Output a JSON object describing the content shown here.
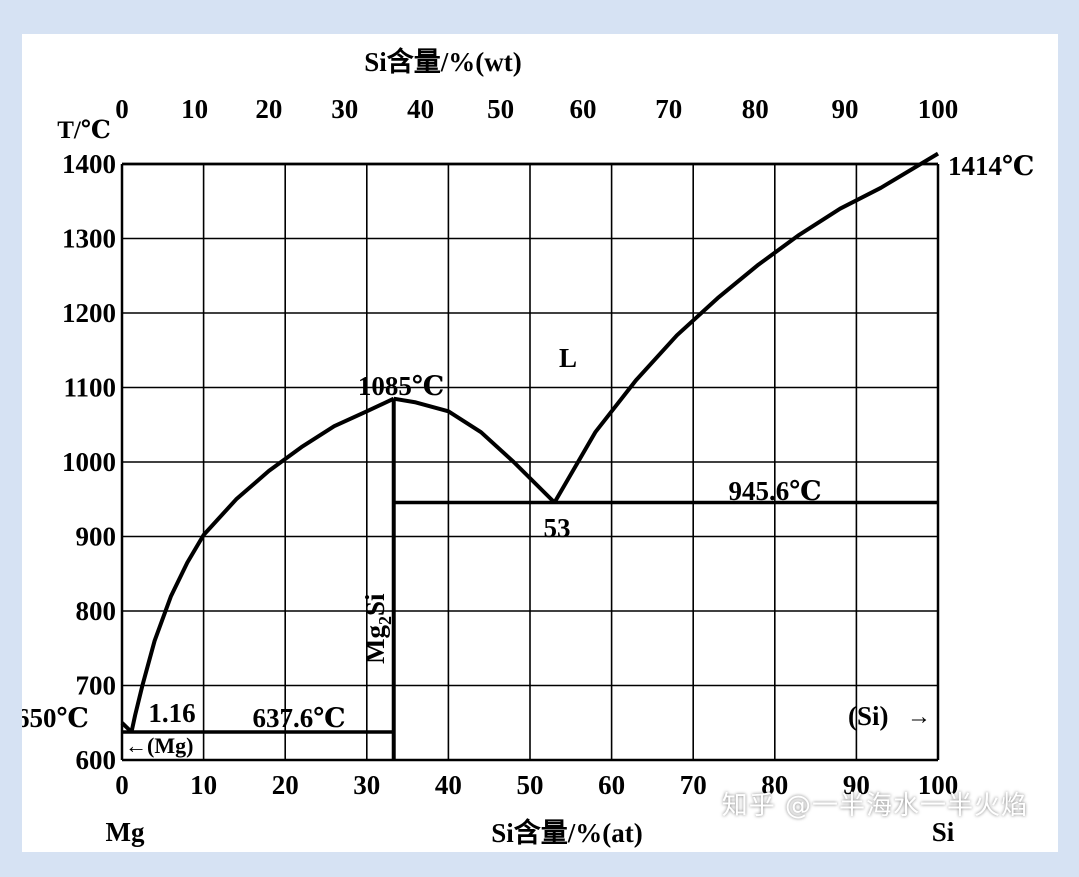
{
  "chart_data": {
    "type": "line",
    "top_axis_title": "Si含量/%(wt)",
    "bottom_axis_title": "Si含量/%(at)",
    "y_axis_title": "T/℃",
    "x_range": [
      0,
      100
    ],
    "y_range": [
      600,
      1400
    ],
    "grid": true,
    "bottom_ticks": [
      "0",
      "10",
      "20",
      "30",
      "40",
      "50",
      "60",
      "70",
      "80",
      "90",
      "100"
    ],
    "top_ticks": [
      {
        "wt": 0,
        "at": 0
      },
      {
        "wt": 10,
        "at": 8.9
      },
      {
        "wt": 20,
        "at": 18.0
      },
      {
        "wt": 30,
        "at": 27.3
      },
      {
        "wt": 40,
        "at": 36.6
      },
      {
        "wt": 50,
        "at": 46.4
      },
      {
        "wt": 60,
        "at": 56.5
      },
      {
        "wt": 70,
        "at": 67.0
      },
      {
        "wt": 80,
        "at": 77.6
      },
      {
        "wt": 90,
        "at": 88.6
      },
      {
        "wt": 100,
        "at": 100
      }
    ],
    "y_ticks": [
      "600",
      "700",
      "800",
      "900",
      "1000",
      "1100",
      "1200",
      "1300",
      "1400"
    ],
    "series": [
      {
        "id": "liquidus-mg-side",
        "points": [
          [
            1.16,
            637.6
          ],
          [
            1.6,
            660
          ],
          [
            2.5,
            700
          ],
          [
            4,
            760
          ],
          [
            6,
            820
          ],
          [
            8,
            865
          ],
          [
            10,
            902
          ],
          [
            14,
            950
          ],
          [
            18,
            988
          ],
          [
            22,
            1020
          ],
          [
            26,
            1048
          ],
          [
            30,
            1068
          ],
          [
            33.3,
            1085
          ]
        ]
      },
      {
        "id": "liquidus-mg2si-side",
        "points": [
          [
            33.3,
            1085
          ],
          [
            36,
            1080
          ],
          [
            40,
            1068
          ],
          [
            44,
            1040
          ],
          [
            48,
            1000
          ],
          [
            53,
            945.6
          ]
        ]
      },
      {
        "id": "liquidus-si-side",
        "points": [
          [
            53,
            945.6
          ],
          [
            58,
            1040
          ],
          [
            63,
            1110
          ],
          [
            68,
            1170
          ],
          [
            73,
            1220
          ],
          [
            78,
            1265
          ],
          [
            83,
            1305
          ],
          [
            88,
            1340
          ],
          [
            93,
            1368
          ],
          [
            100,
            1414
          ]
        ]
      },
      {
        "id": "mg-melting-branch",
        "points": [
          [
            0,
            650
          ],
          [
            1.16,
            637.6
          ]
        ]
      }
    ],
    "lines": {
      "eutectic_mg": {
        "y": 637.6,
        "x1": 0,
        "x2": 33.3
      },
      "mg2si_compound": {
        "x": 33.3,
        "y1": 600,
        "y2": 1085
      },
      "eutectic_si": {
        "y": 945.6,
        "x1": 33.3,
        "x2": 100
      }
    },
    "annotations": {
      "liquid": "L",
      "mg2si_max": "1085℃",
      "si_melting": "1414℃",
      "mg_melting": "650℃",
      "eutectic_si_temp": "945.6℃",
      "eutectic_si_comp": "53",
      "eutectic_mg_comp": "1.16",
      "eutectic_mg_temp": "637.6℃",
      "mg2si_base": "Mg",
      "mg2si_sub": "2",
      "mg2si_tail": "Si",
      "mg_phase": "←(Mg)",
      "si_phase": "(Si)",
      "si_arrow": "→",
      "left_element": "Mg",
      "right_element": "Si"
    }
  },
  "watermark": "知乎 @一半海水一半火焰"
}
